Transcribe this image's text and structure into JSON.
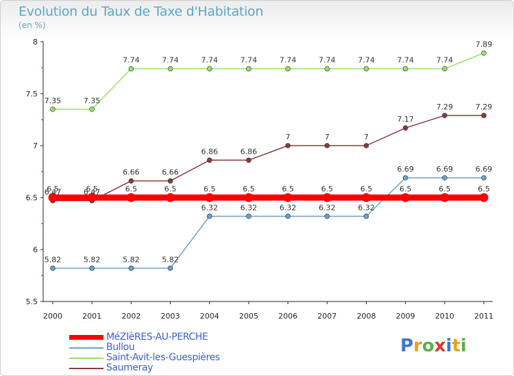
{
  "header": {
    "title": "Evolution du Taux de Taxe d'Habitation",
    "subtitle": "(en %)"
  },
  "logo": {
    "letters": [
      "P",
      "r",
      "o",
      "x",
      "i",
      "t",
      "i"
    ],
    "colors": [
      "#3a76d6",
      "#e8a21a",
      "#5bb04a",
      "#d23b2e",
      "#3a76d6",
      "#e8a21a",
      "#5bb04a"
    ]
  },
  "chart_data": {
    "type": "line",
    "title": "Evolution du Taux de Taxe d'Habitation",
    "ylabel": "(en %)",
    "xlabel": "",
    "categories": [
      "2000",
      "2001",
      "2002",
      "2003",
      "2004",
      "2005",
      "2006",
      "2007",
      "2008",
      "2009",
      "2010",
      "2011"
    ],
    "ylim": [
      5.5,
      8
    ],
    "yticks": [
      "5.5",
      "6",
      "6.5",
      "7",
      "7.5",
      "8"
    ],
    "grid": false,
    "legend_position": "bottom-left",
    "series": [
      {
        "name": "MéZIèRES-AU-PERCHE",
        "color": "#ff0000",
        "values": [
          6.5,
          6.5,
          6.5,
          6.5,
          6.5,
          6.5,
          6.5,
          6.5,
          6.5,
          6.5,
          6.5,
          6.5
        ],
        "labels": [
          "6.5",
          "6.5",
          "6.5",
          "6.5",
          "6.5",
          "6.5",
          "6.5",
          "6.5",
          "6.5",
          "6.5",
          "6.5",
          "6.5"
        ]
      },
      {
        "name": "Bullou",
        "color": "#6a9fd0",
        "values": [
          5.82,
          5.82,
          5.82,
          5.82,
          6.32,
          6.32,
          6.32,
          6.32,
          6.32,
          6.69,
          6.69,
          6.69
        ],
        "labels": [
          "5.82",
          "5.82",
          "5.82",
          "5.82",
          "6.32",
          "6.32",
          "6.32",
          "6.32",
          "6.32",
          "6.69",
          "6.69",
          "6.69"
        ]
      },
      {
        "name": "Saint-Avit-les-Guespières",
        "color": "#99dd66",
        "values": [
          7.35,
          7.35,
          7.74,
          7.74,
          7.74,
          7.74,
          7.74,
          7.74,
          7.74,
          7.74,
          7.74,
          7.89
        ],
        "labels": [
          "7.35",
          "7.35",
          "7.74",
          "7.74",
          "7.74",
          "7.74",
          "7.74",
          "7.74",
          "7.74",
          "7.74",
          "7.74",
          "7.89"
        ]
      },
      {
        "name": "Saumeray",
        "color": "#8b3a3a",
        "values": [
          6.47,
          6.47,
          6.66,
          6.66,
          6.86,
          6.86,
          7,
          7,
          7,
          7.17,
          7.29,
          7.29
        ],
        "labels": [
          "6.47",
          "6.47",
          "6.66",
          "6.66",
          "6.86",
          "6.86",
          "7",
          "7",
          "7",
          "7.17",
          "7.29",
          "7.29"
        ]
      }
    ]
  }
}
